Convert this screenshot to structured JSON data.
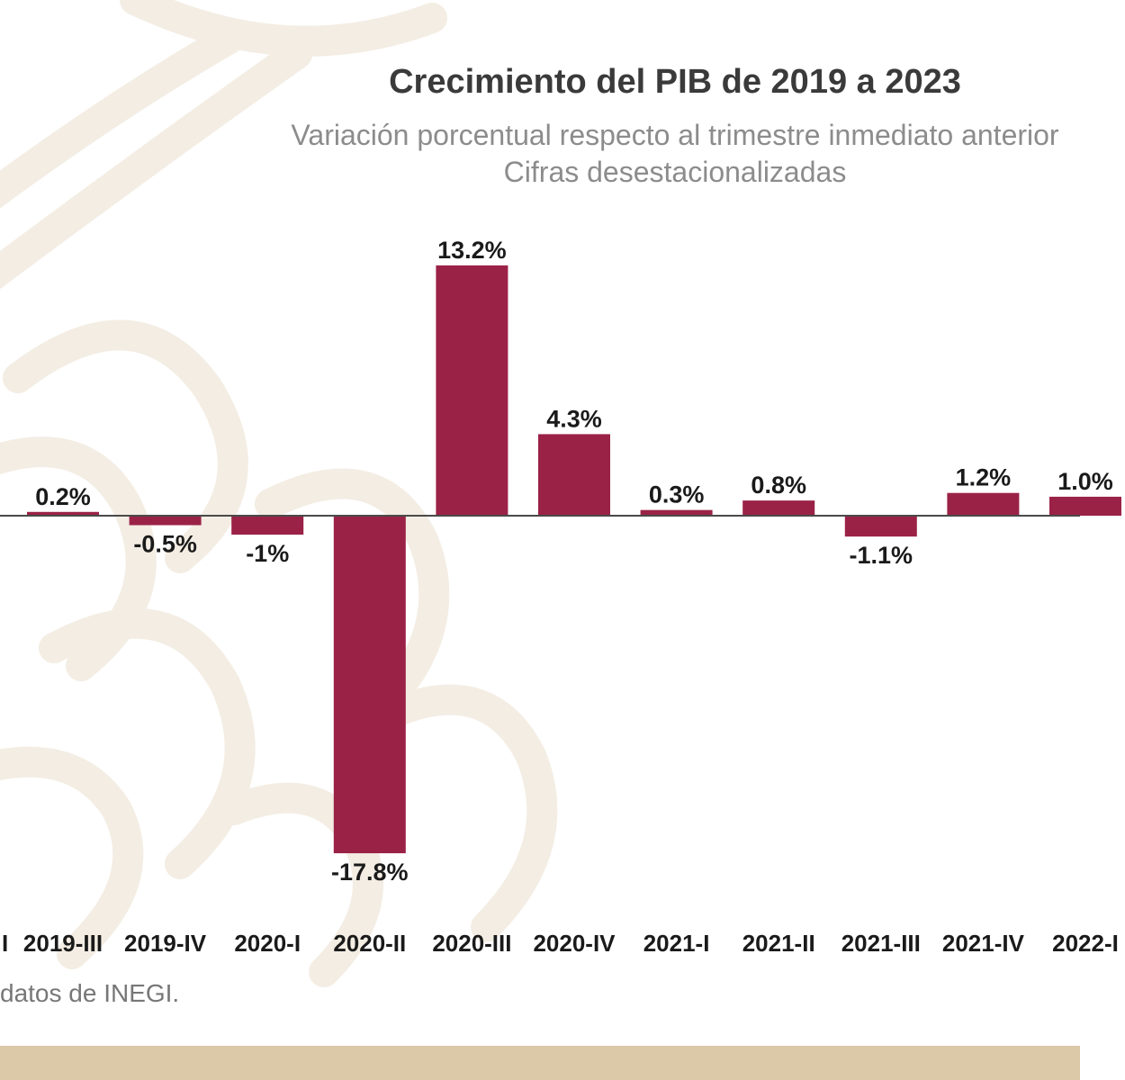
{
  "colors": {
    "bar": "#9b2247",
    "axis": "#4a4a4a",
    "label": "#1a1a1a",
    "band": "#dcc9a8",
    "pattern": "#f4efe6"
  },
  "header": {
    "title": "Crecimiento del PIB de 2019 a 2023",
    "subtitle_line1": "Variación porcentual respecto al trimestre inmediato anterior",
    "subtitle_line2": "Cifras desestacionalizadas"
  },
  "footer": {
    "source": "datos de INEGI."
  },
  "chart_data": {
    "type": "bar",
    "title": "Crecimiento del PIB de 2019 a 2023",
    "subtitle": "Variación porcentual respecto al trimestre inmediato anterior. Cifras desestacionalizadas",
    "xlabel": "",
    "ylabel": "",
    "grid": false,
    "categories": [
      "2019-III",
      "2019-IV",
      "2020-I",
      "2020-II",
      "2020-III",
      "2020-IV",
      "2021-I",
      "2021-II",
      "2021-III",
      "2021-IV",
      "2022-I"
    ],
    "values": [
      0.2,
      -0.5,
      -1.0,
      -17.8,
      13.2,
      4.3,
      0.3,
      0.8,
      -1.1,
      1.2,
      1.0
    ],
    "data_labels": [
      "0.2%",
      "-0.5%",
      "-1%",
      "-17.8%",
      "13.2%",
      "4.3%",
      "0.3%",
      "0.8%",
      "-1.1%",
      "1.2%",
      "1.0%"
    ]
  }
}
